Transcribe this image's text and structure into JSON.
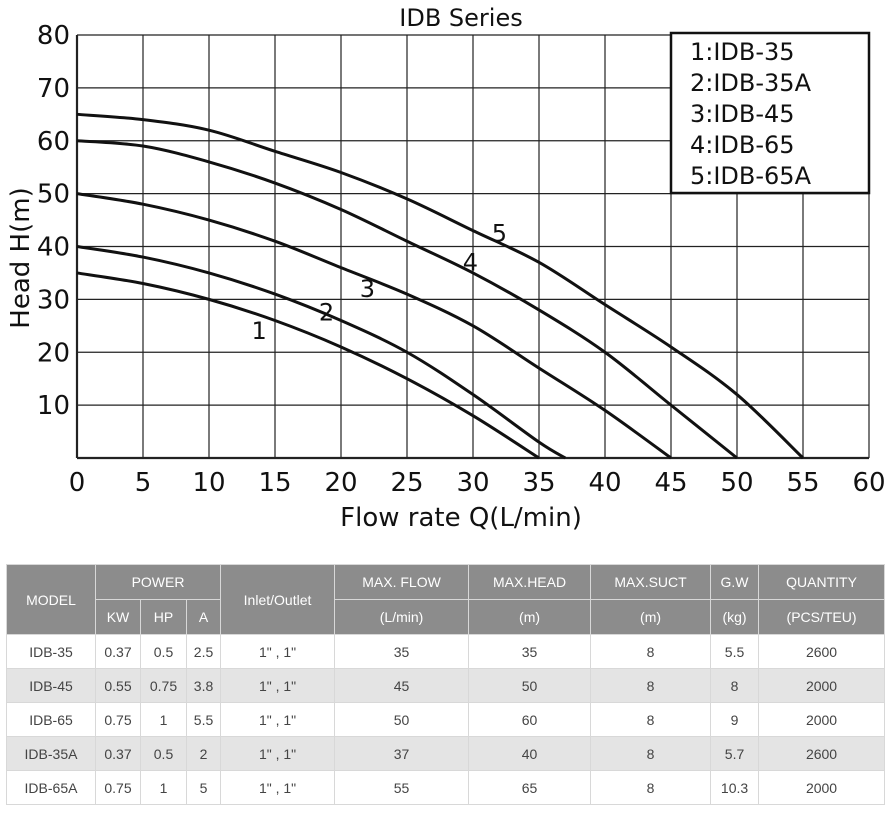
{
  "chart_data": {
    "type": "line",
    "title": "IDB Series",
    "xlabel": "Flow rate Q(L/min)",
    "ylabel": "Head H(m)",
    "xlim": [
      0,
      60
    ],
    "ylim": [
      0,
      80
    ],
    "x_ticks": [
      "0",
      "5",
      "10",
      "15",
      "20",
      "25",
      "30",
      "35",
      "40",
      "45",
      "50",
      "55",
      "60"
    ],
    "y_ticks": [
      "10",
      "20",
      "30",
      "40",
      "50",
      "60",
      "70",
      "80"
    ],
    "grid": true,
    "legend_position": "top-right",
    "legend": [
      "1:IDB-35",
      "2:IDB-35A",
      "3:IDB-45",
      "4:IDB-65",
      "5:IDB-65A"
    ],
    "series": [
      {
        "label": "1",
        "x": [
          0,
          5,
          10,
          15,
          20,
          25,
          30,
          35
        ],
        "y": [
          35,
          33,
          30,
          26,
          21,
          15,
          8,
          0
        ]
      },
      {
        "label": "2",
        "x": [
          0,
          5,
          10,
          15,
          20,
          25,
          30,
          35,
          37
        ],
        "y": [
          40,
          38,
          35,
          31,
          26,
          20,
          12,
          3,
          0
        ]
      },
      {
        "label": "3",
        "x": [
          0,
          5,
          10,
          15,
          20,
          25,
          30,
          35,
          40,
          45
        ],
        "y": [
          50,
          48,
          45,
          41,
          36,
          31,
          25,
          17,
          9,
          0
        ]
      },
      {
        "label": "4",
        "x": [
          0,
          5,
          10,
          15,
          20,
          25,
          30,
          35,
          40,
          45,
          50
        ],
        "y": [
          60,
          59,
          56,
          52,
          47,
          41,
          35,
          28,
          20,
          10,
          0
        ]
      },
      {
        "label": "5",
        "x": [
          0,
          5,
          10,
          15,
          20,
          25,
          30,
          35,
          40,
          45,
          50,
          55
        ],
        "y": [
          65,
          64,
          62,
          58,
          54,
          49,
          43,
          37,
          29,
          21,
          12,
          0
        ]
      }
    ]
  },
  "table": {
    "headers": {
      "model": "MODEL",
      "power": "POWER",
      "kw": "KW",
      "hp": "HP",
      "a": "A",
      "inlet": "Inlet/Outlet",
      "max_flow": "MAX. FLOW",
      "max_flow_unit": "(L/min)",
      "max_head": "MAX.HEAD",
      "max_head_unit": "(m)",
      "max_suct": "MAX.SUCT",
      "max_suct_unit": "(m)",
      "gw": "G.W",
      "gw_unit": "(kg)",
      "quantity": "QUANTITY",
      "quantity_unit": "(PCS/TEU)"
    },
    "rows": [
      [
        "IDB-35",
        "0.37",
        "0.5",
        "2.5",
        "1\" , 1\"",
        "35",
        "35",
        "8",
        "5.5",
        "2600"
      ],
      [
        "IDB-45",
        "0.55",
        "0.75",
        "3.8",
        "1\" , 1\"",
        "45",
        "50",
        "8",
        "8",
        "2000"
      ],
      [
        "IDB-65",
        "0.75",
        "1",
        "5.5",
        "1\" , 1\"",
        "50",
        "60",
        "8",
        "9",
        "2000"
      ],
      [
        "IDB-35A",
        "0.37",
        "0.5",
        "2",
        "1\" , 1\"",
        "37",
        "40",
        "8",
        "5.7",
        "2600"
      ],
      [
        "IDB-65A",
        "0.75",
        "1",
        "5",
        "1\" , 1\"",
        "55",
        "65",
        "8",
        "10.3",
        "2000"
      ]
    ]
  }
}
